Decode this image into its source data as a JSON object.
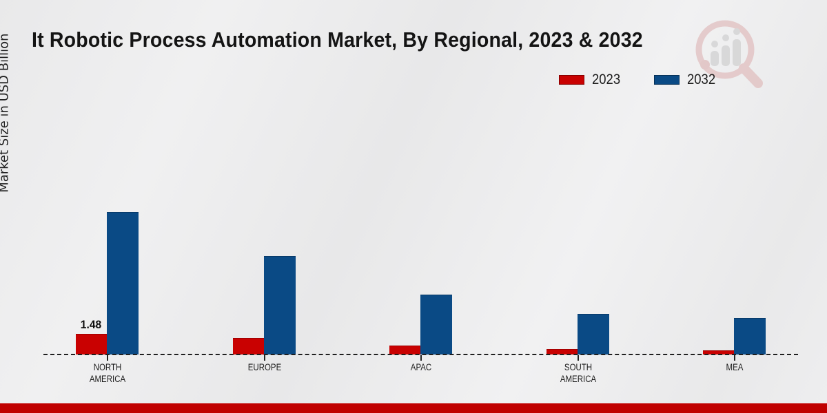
{
  "title": "It Robotic Process Automation Market, By Regional, 2023 & 2032",
  "ylabel": "Market Size in USD Billion",
  "legend": {
    "position": "top-right",
    "items": [
      {
        "label": "2023",
        "color": "#c90101"
      },
      {
        "label": "2032",
        "color": "#0a4a85"
      }
    ]
  },
  "watermark_icon": "magnifier-bar-chart-logo",
  "footer": {
    "color": "#c00000"
  },
  "colors": {
    "background": "#ececec",
    "baseline_dash": "#1f1f1f",
    "text": "#1a1a1a",
    "bar_2023": "#c90101",
    "bar_2023_border": "#9e0000",
    "bar_2032": "#0a4a85",
    "bar_2032_border": "#083a69"
  },
  "chart_data": {
    "type": "bar",
    "title": "It Robotic Process Automation Market, By Regional, 2023 & 2032",
    "xlabel": "",
    "ylabel": "Market Size in USD Billion",
    "categories": [
      "NORTH AMERICA",
      "EUROPE",
      "APAC",
      "SOUTH AMERICA",
      "MEA"
    ],
    "series": [
      {
        "name": "2023",
        "color": "#c90101",
        "values": [
          1.48,
          1.18,
          0.64,
          0.39,
          0.3
        ]
      },
      {
        "name": "2032",
        "color": "#0a4a85",
        "values": [
          10.21,
          7.05,
          4.29,
          2.91,
          2.61
        ]
      }
    ],
    "data_label": {
      "category_index": 0,
      "series_index": 0,
      "text": "1.48"
    },
    "ylim": [
      0,
      12
    ],
    "grid": false,
    "axis_style": "dashed-baseline-with-ticks",
    "legend_position": "top-right"
  }
}
